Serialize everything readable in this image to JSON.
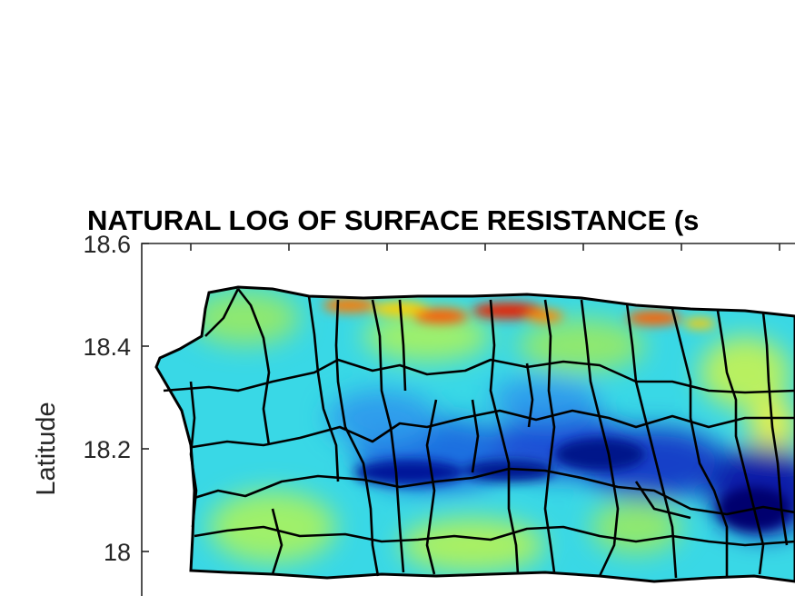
{
  "figure": {
    "title": "NATURAL LOG OF SURFACE RESISTANCE (s",
    "ylabel": "Latitude",
    "yticks": [
      {
        "value": 18.6,
        "label": "18.6"
      },
      {
        "value": 18.4,
        "label": "18.4"
      },
      {
        "value": 18.2,
        "label": "18.2"
      },
      {
        "value": 18.0,
        "label": "18"
      }
    ],
    "ylim": [
      17.92,
      18.6
    ],
    "top_tick_count": 7,
    "colormap": "jet",
    "colors": {
      "frame": "#262626",
      "boundary": "#000000",
      "low": "#00008f",
      "mid": "#2fc8f0",
      "high": "#ff1a00"
    }
  }
}
